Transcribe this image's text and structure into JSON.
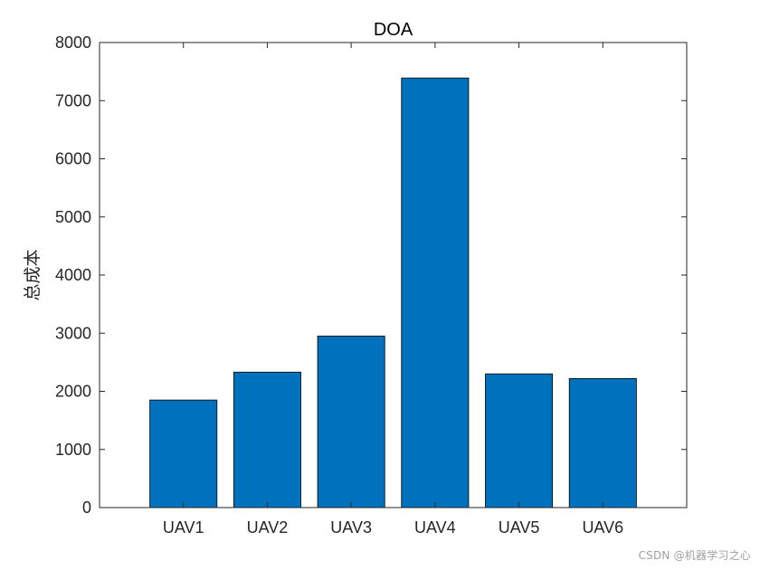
{
  "chart_data": {
    "type": "bar",
    "title": "DOA",
    "xlabel": "",
    "ylabel": "总成本",
    "categories": [
      "UAV1",
      "UAV2",
      "UAV3",
      "UAV4",
      "UAV5",
      "UAV6"
    ],
    "values": [
      1850,
      2330,
      2950,
      7390,
      2300,
      2220
    ],
    "ylim": [
      0,
      8000
    ],
    "yticks": [
      0,
      1000,
      2000,
      3000,
      4000,
      5000,
      6000,
      7000,
      8000
    ],
    "bar_color": "#0072BD",
    "grid": false,
    "legend": "none"
  },
  "watermark": "CSDN @机器学习之心"
}
